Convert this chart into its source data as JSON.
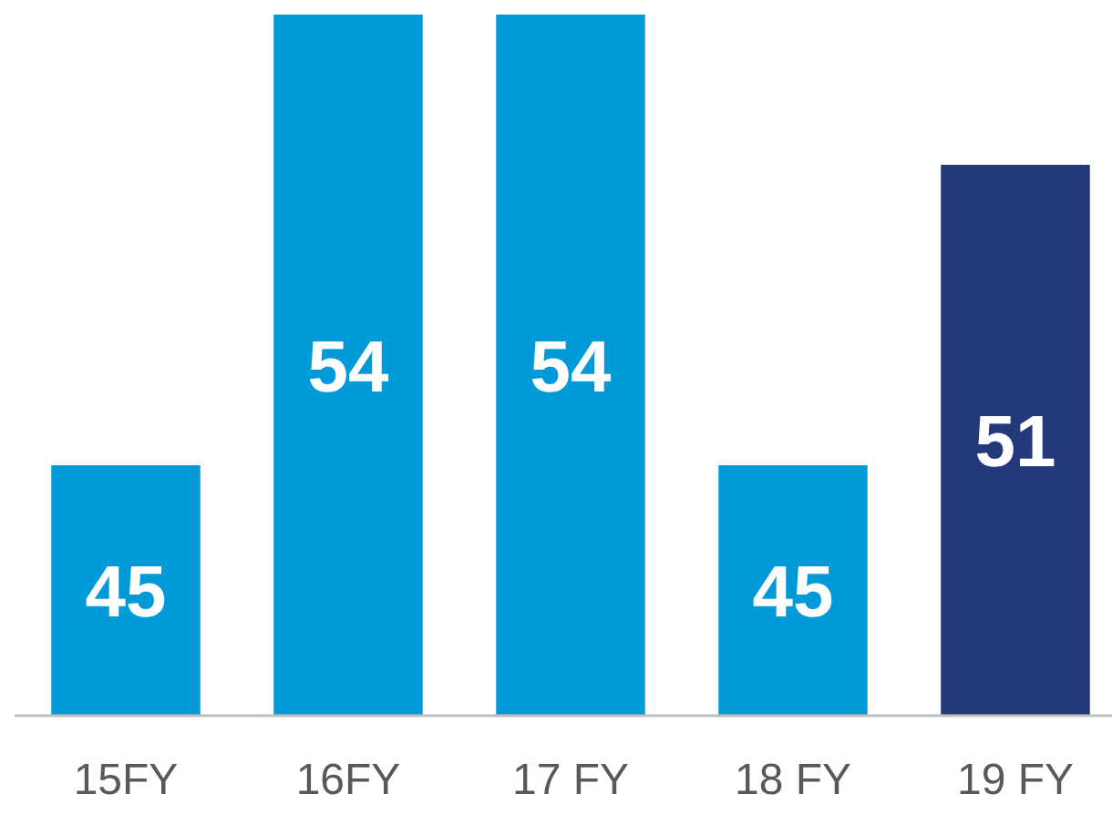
{
  "chart_data": {
    "type": "bar",
    "categories": [
      "15FY",
      "16FY",
      "17 FY",
      "18 FY",
      "19 FY"
    ],
    "values": [
      45,
      54,
      54,
      45,
      51
    ],
    "colors": [
      "#009ad9",
      "#009ad9",
      "#009ad9",
      "#009ad9",
      "#24397c"
    ],
    "ylim": [
      40,
      54
    ],
    "data_labels": true,
    "tick_labels": "x"
  }
}
